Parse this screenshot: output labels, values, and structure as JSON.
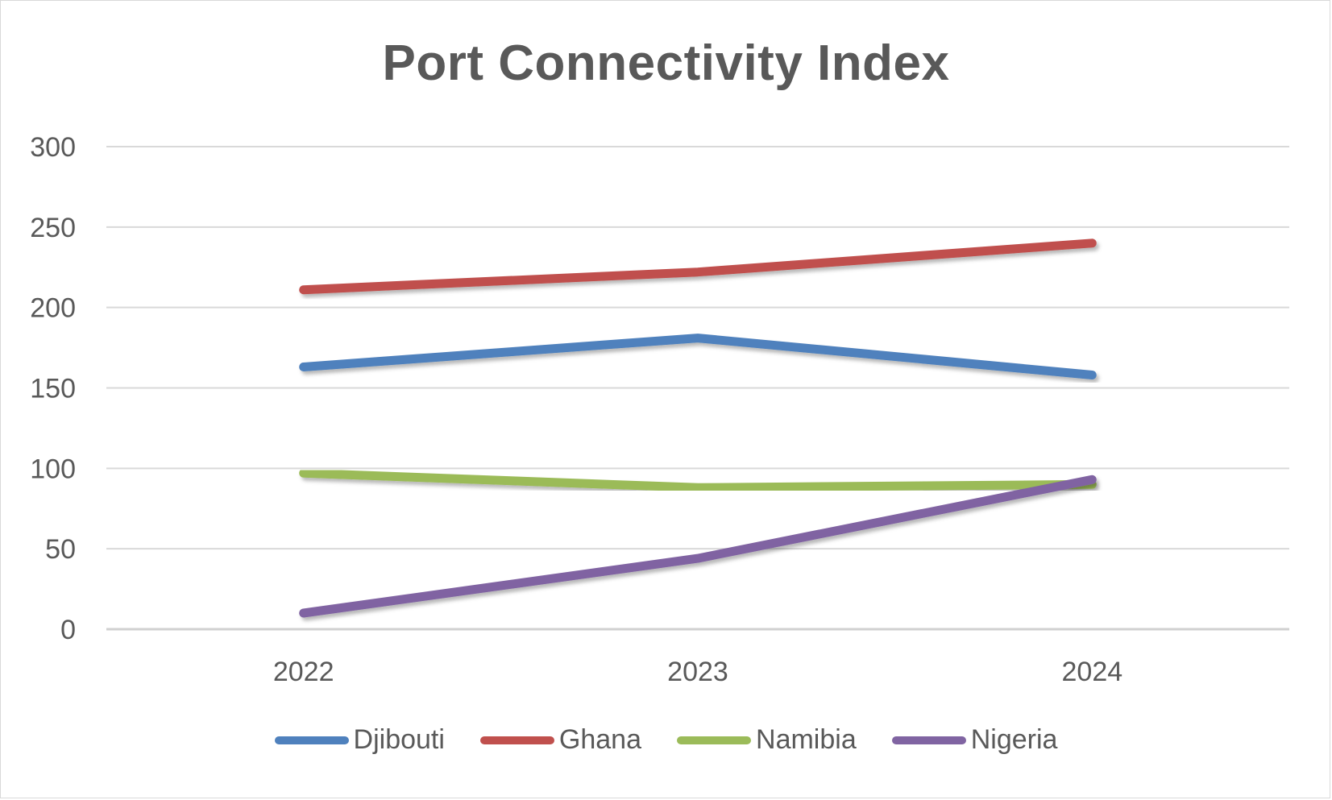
{
  "chart_data": {
    "type": "line",
    "title": "Port Connectivity Index",
    "categories": [
      "2022",
      "2023",
      "2024"
    ],
    "ylim": [
      0,
      300
    ],
    "yticks": [
      0,
      50,
      100,
      150,
      200,
      250,
      300
    ],
    "grid": true,
    "legend_position": "bottom",
    "series": [
      {
        "name": "Djibouti",
        "values": [
          163,
          181,
          158
        ],
        "color": "#4f81bd"
      },
      {
        "name": "Ghana",
        "values": [
          211,
          222,
          240
        ],
        "color": "#c0504d"
      },
      {
        "name": "Namibia",
        "values": [
          97,
          88,
          90
        ],
        "color": "#9bbb59"
      },
      {
        "name": "Nigeria",
        "values": [
          10,
          44,
          93
        ],
        "color": "#8064a2"
      }
    ]
  }
}
